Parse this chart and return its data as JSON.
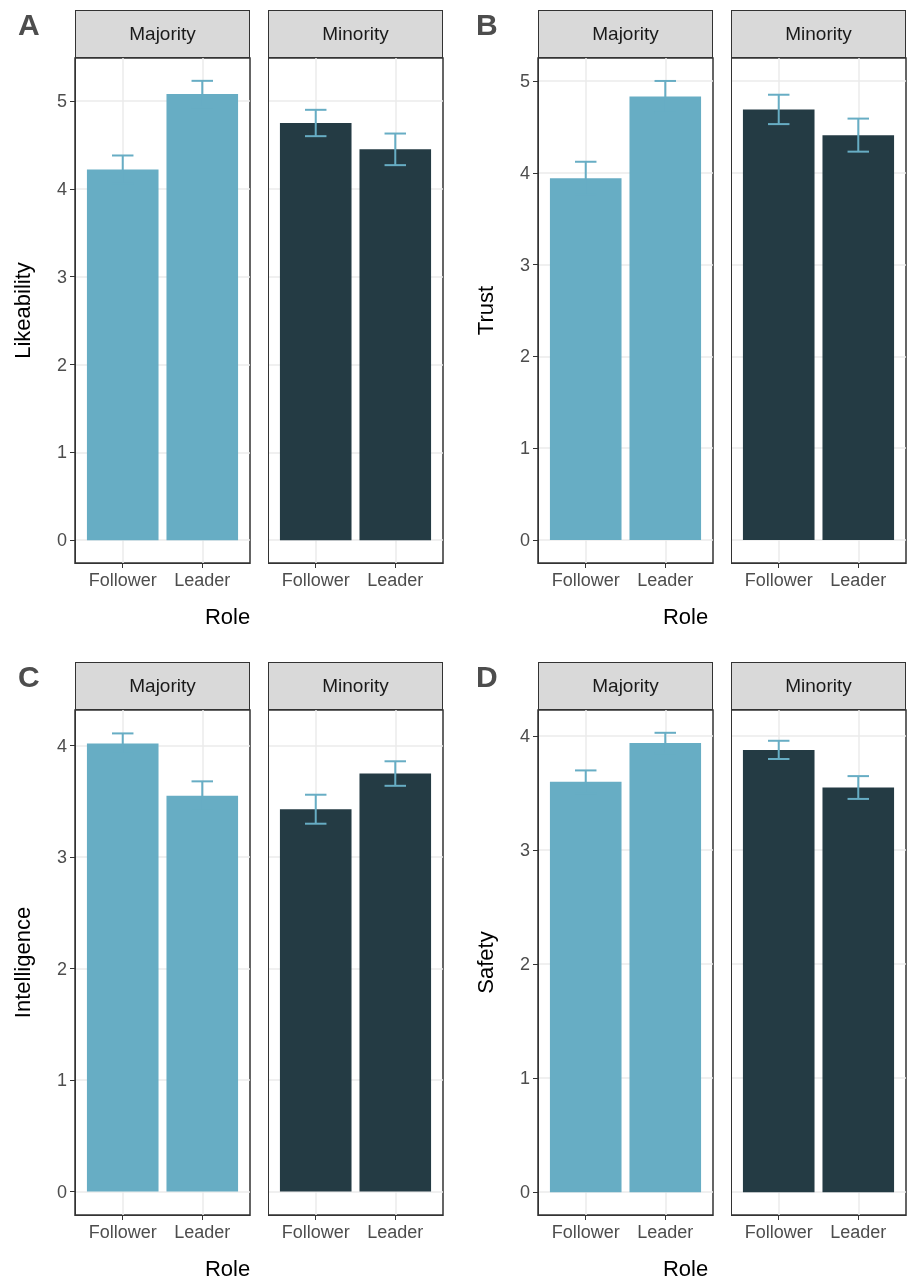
{
  "chart_data": [
    {
      "type": "bar",
      "title": "Majority",
      "ylabel": "Likeability",
      "xlabel": "Role",
      "annotations": [
        "A"
      ],
      "categories": [
        "Follower",
        "Leader"
      ],
      "values": [
        4.22,
        5.08
      ],
      "errors": [
        0.16,
        0.15
      ],
      "color": "#67adc4",
      "ylim": [
        -0.26,
        5.49
      ],
      "yticks": [
        0,
        1,
        2,
        3,
        4,
        5
      ],
      "grid": true
    },
    {
      "type": "bar",
      "title": "Minority",
      "categories": [
        "Follower",
        "Leader"
      ],
      "values": [
        4.75,
        4.45
      ],
      "errors": [
        0.15,
        0.18
      ],
      "color": "#243b44",
      "ylim": [
        -0.26,
        5.49
      ],
      "yticks": [
        0,
        1,
        2,
        3,
        4,
        5
      ],
      "grid": true,
      "tick_labels": "x"
    },
    {
      "type": "bar",
      "title": "Majority",
      "ylabel": "Trust",
      "xlabel": "Role",
      "annotations": [
        "B"
      ],
      "categories": [
        "Follower",
        "Leader"
      ],
      "values": [
        3.94,
        4.83
      ],
      "errors": [
        0.18,
        0.17
      ],
      "color": "#67adc4",
      "ylim": [
        -0.25,
        5.25
      ],
      "yticks": [
        0,
        1,
        2,
        3,
        4,
        5
      ],
      "grid": true
    },
    {
      "type": "bar",
      "title": "Minority",
      "categories": [
        "Follower",
        "Leader"
      ],
      "values": [
        4.69,
        4.41
      ],
      "errors": [
        0.16,
        0.18
      ],
      "color": "#243b44",
      "ylim": [
        -0.25,
        5.25
      ],
      "yticks": [
        0,
        1,
        2,
        3,
        4,
        5
      ],
      "grid": true,
      "tick_labels": "x"
    },
    {
      "type": "bar",
      "title": "Majority",
      "ylabel": "Intelligence",
      "xlabel": "Role",
      "annotations": [
        "C"
      ],
      "categories": [
        "Follower",
        "Leader"
      ],
      "values": [
        4.02,
        3.55
      ],
      "errors": [
        0.09,
        0.13
      ],
      "color": "#67adc4",
      "ylim": [
        -0.21,
        4.32
      ],
      "yticks": [
        0,
        1,
        2,
        3,
        4
      ],
      "grid": true
    },
    {
      "type": "bar",
      "title": "Minority",
      "categories": [
        "Follower",
        "Leader"
      ],
      "values": [
        3.43,
        3.75
      ],
      "errors": [
        0.13,
        0.11
      ],
      "color": "#243b44",
      "ylim": [
        -0.21,
        4.32
      ],
      "yticks": [
        0,
        1,
        2,
        3,
        4
      ],
      "grid": true,
      "tick_labels": "x"
    },
    {
      "type": "bar",
      "title": "Majority",
      "ylabel": "Safety",
      "xlabel": "Role",
      "annotations": [
        "D"
      ],
      "categories": [
        "Follower",
        "Leader"
      ],
      "values": [
        3.6,
        3.94
      ],
      "errors": [
        0.1,
        0.09
      ],
      "color": "#67adc4",
      "ylim": [
        -0.2,
        4.23
      ],
      "yticks": [
        0,
        1,
        2,
        3,
        4
      ],
      "grid": true
    },
    {
      "type": "bar",
      "title": "Minority",
      "categories": [
        "Follower",
        "Leader"
      ],
      "values": [
        3.88,
        3.55
      ],
      "errors": [
        0.08,
        0.1
      ],
      "color": "#243b44",
      "ylim": [
        -0.2,
        4.23
      ],
      "yticks": [
        0,
        1,
        2,
        3,
        4
      ],
      "grid": true,
      "tick_labels": "x"
    }
  ]
}
